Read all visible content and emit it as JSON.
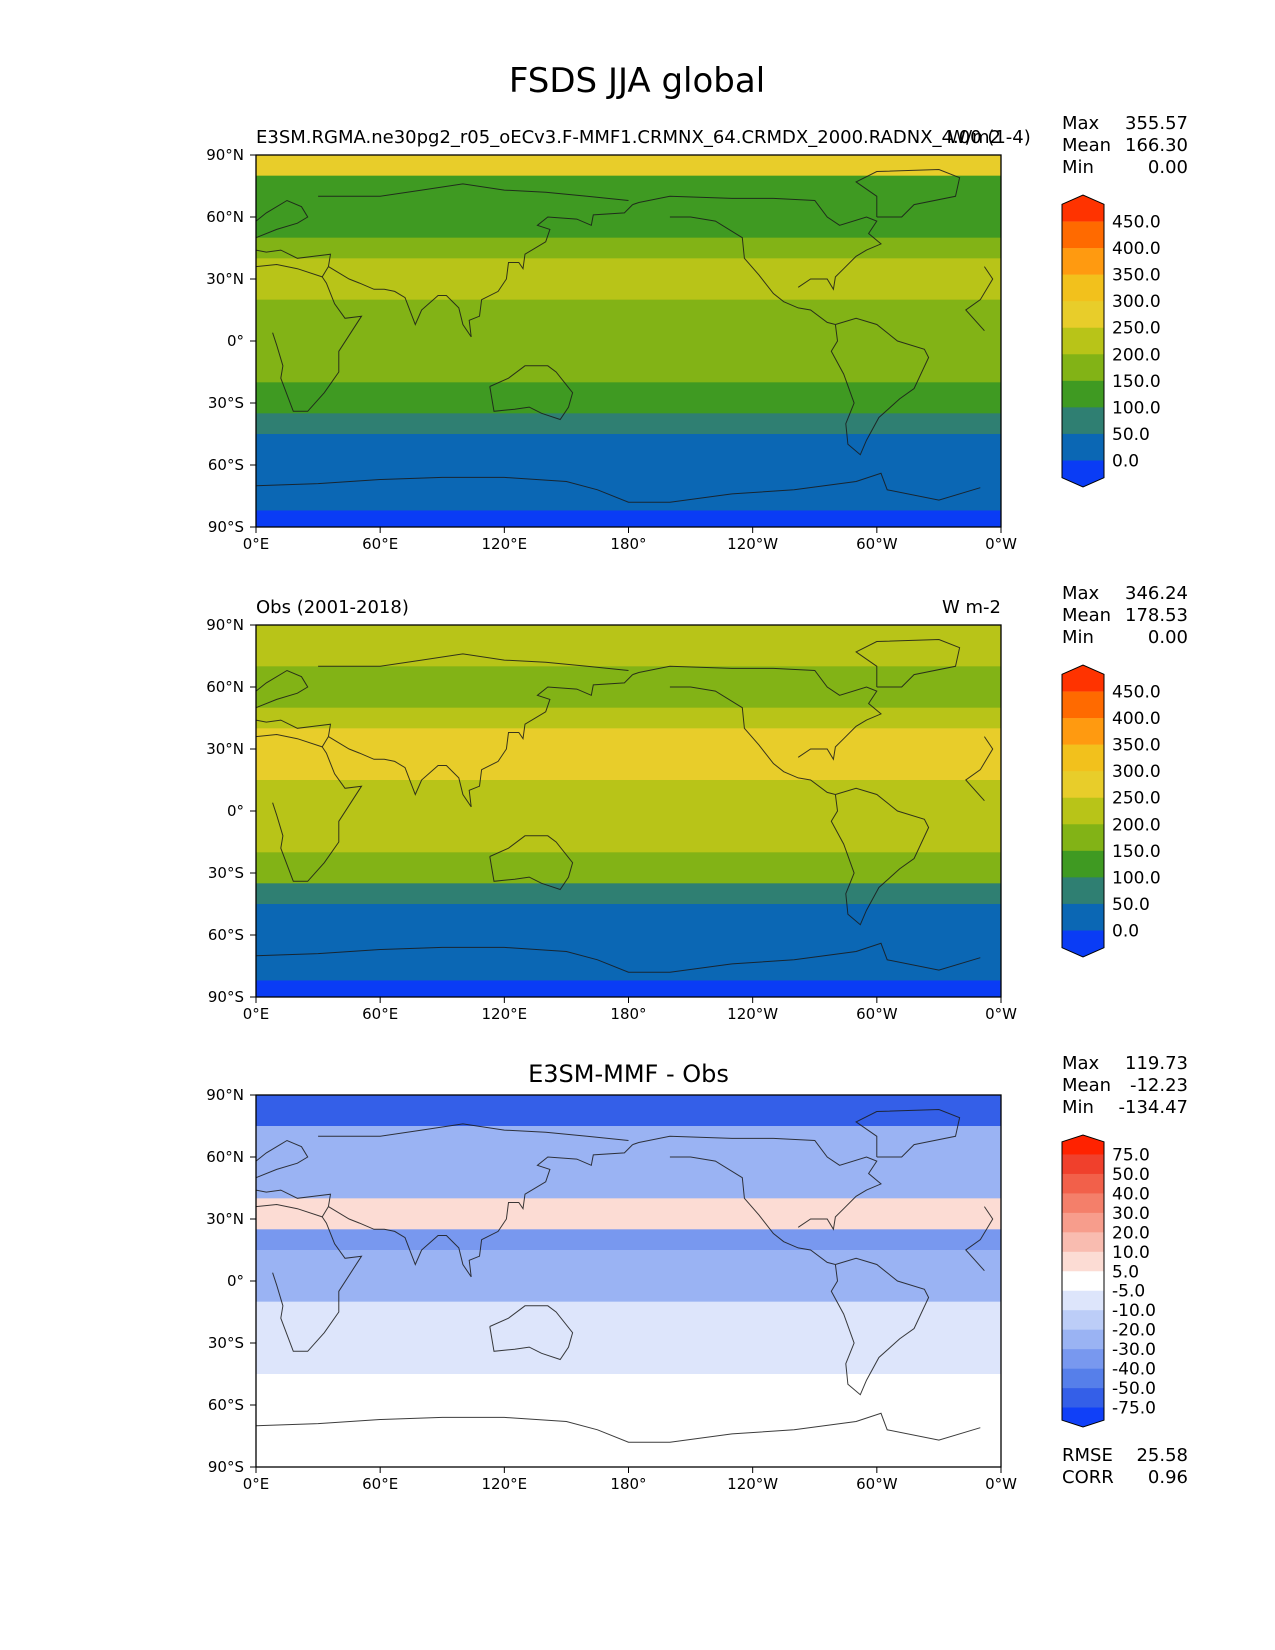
{
  "title": "FSDS JJA global",
  "chart_data": [
    {
      "type": "heatmap",
      "panel": "test",
      "title_left": "E3SM.RGMA.ne30pg2_r05_oECv3.F-MMF1.CRMNX_64.CRMDX_2000.RADNX_4.00 (1-4)",
      "title_center": "",
      "title_right": "W/m2",
      "stats": {
        "max": "355.57",
        "mean": "166.30",
        "min": "0.00"
      },
      "stat_labels": [
        "Max",
        "Mean",
        "Min"
      ],
      "colorbar": {
        "levels": [
          "450.0",
          "400.0",
          "350.0",
          "300.0",
          "250.0",
          "200.0",
          "150.0",
          "100.0",
          "50.0",
          "0.0"
        ],
        "colors": [
          "#ff3300",
          "#ff6a00",
          "#ff9a10",
          "#f2c11c",
          "#e8cd2a",
          "#b8c418",
          "#82b316",
          "#3f9a22",
          "#2f7f72",
          "#0b67b4",
          "#0a3cf5"
        ]
      },
      "zonal_bands": [
        {
          "lat": [
            90,
            80
          ],
          "band": 4
        },
        {
          "lat": [
            80,
            50
          ],
          "band": 7
        },
        {
          "lat": [
            50,
            40
          ],
          "band": 6
        },
        {
          "lat": [
            40,
            20
          ],
          "band": 5
        },
        {
          "lat": [
            20,
            -20
          ],
          "band": 6
        },
        {
          "lat": [
            -20,
            -35
          ],
          "band": 7
        },
        {
          "lat": [
            -35,
            -45
          ],
          "band": 8
        },
        {
          "lat": [
            -45,
            -82
          ],
          "band": 9
        },
        {
          "lat": [
            -82,
            -90
          ],
          "band": 10
        }
      ],
      "xlim": [
        "0°E",
        "0°W"
      ],
      "ylim": [
        "90°S",
        "90°N"
      ]
    },
    {
      "type": "heatmap",
      "panel": "reference",
      "title_left": "Obs (2001-2018)",
      "title_center": "",
      "title_right": "W m-2",
      "stats": {
        "max": "346.24",
        "mean": "178.53",
        "min": "0.00"
      },
      "stat_labels": [
        "Max",
        "Mean",
        "Min"
      ],
      "colorbar": {
        "levels": [
          "450.0",
          "400.0",
          "350.0",
          "300.0",
          "250.0",
          "200.0",
          "150.0",
          "100.0",
          "50.0",
          "0.0"
        ],
        "colors": [
          "#ff3300",
          "#ff6a00",
          "#ff9a10",
          "#f2c11c",
          "#e8cd2a",
          "#b8c418",
          "#82b316",
          "#3f9a22",
          "#2f7f72",
          "#0b67b4",
          "#0a3cf5"
        ]
      },
      "zonal_bands": [
        {
          "lat": [
            90,
            70
          ],
          "band": 5
        },
        {
          "lat": [
            70,
            50
          ],
          "band": 6
        },
        {
          "lat": [
            50,
            40
          ],
          "band": 5
        },
        {
          "lat": [
            40,
            15
          ],
          "band": 4
        },
        {
          "lat": [
            15,
            -20
          ],
          "band": 5
        },
        {
          "lat": [
            -20,
            -35
          ],
          "band": 6
        },
        {
          "lat": [
            -35,
            -45
          ],
          "band": 8
        },
        {
          "lat": [
            -45,
            -82
          ],
          "band": 9
        },
        {
          "lat": [
            -82,
            -90
          ],
          "band": 10
        }
      ],
      "xlim": [
        "0°E",
        "0°W"
      ],
      "ylim": [
        "90°S",
        "90°N"
      ]
    },
    {
      "type": "heatmap",
      "panel": "difference",
      "title_left": "",
      "title_center": "E3SM-MMF - Obs",
      "title_right": "",
      "stats": {
        "max": "119.73",
        "mean": "-12.23",
        "min": "-134.47"
      },
      "stat_labels": [
        "Max",
        "Mean",
        "Min"
      ],
      "colorbar": {
        "levels": [
          "75.0",
          "50.0",
          "40.0",
          "30.0",
          "20.0",
          "10.0",
          "5.0",
          "-5.0",
          "-10.0",
          "-20.0",
          "-30.0",
          "-40.0",
          "-50.0",
          "-75.0"
        ],
        "colors": [
          "#ff2200",
          "#f0402c",
          "#f2604a",
          "#f47f6a",
          "#f79d8c",
          "#f9bcb0",
          "#fcdcd4",
          "#ffffff",
          "#dde5fb",
          "#bccdf7",
          "#9ab3f3",
          "#7898ef",
          "#567fea",
          "#345fe8",
          "#1040f8"
        ]
      },
      "zonal_bands": [
        {
          "lat": [
            90,
            75
          ],
          "band": 13
        },
        {
          "lat": [
            75,
            40
          ],
          "band": 10
        },
        {
          "lat": [
            40,
            25
          ],
          "band": 6
        },
        {
          "lat": [
            25,
            15
          ],
          "band": 11
        },
        {
          "lat": [
            15,
            -10
          ],
          "band": 10
        },
        {
          "lat": [
            -10,
            -30
          ],
          "band": 8
        },
        {
          "lat": [
            -30,
            -45
          ],
          "band": 8
        },
        {
          "lat": [
            -45,
            -90
          ],
          "band": 7
        }
      ],
      "rmse_corr": {
        "rmse_label": "RMSE",
        "rmse": "25.58",
        "corr_label": "CORR",
        "corr": "0.96"
      },
      "xlim": [
        "0°E",
        "0°W"
      ],
      "ylim": [
        "90°S",
        "90°N"
      ]
    }
  ],
  "axes": {
    "x_ticks": [
      "0°E",
      "60°E",
      "120°E",
      "180°",
      "120°W",
      "60°W",
      "0°W"
    ],
    "y_ticks": [
      "90°N",
      "60°N",
      "30°N",
      "0°",
      "30°S",
      "60°S",
      "90°S"
    ]
  }
}
